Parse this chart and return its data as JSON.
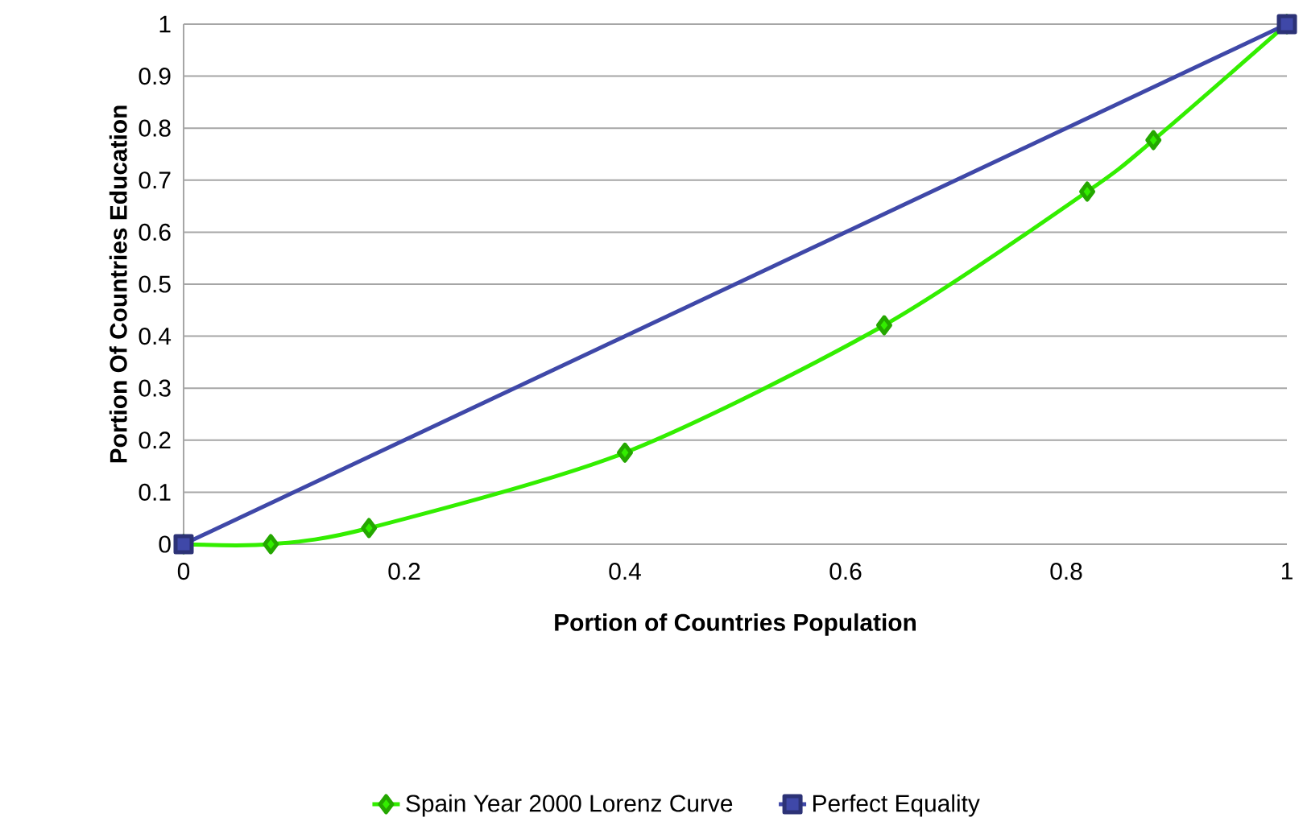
{
  "chart_data": {
    "type": "line",
    "xlabel": "Portion of Countries Population",
    "ylabel": "Portion Of Countries Education",
    "series": [
      {
        "name": "Spain Year 2000 Lorenz Curve",
        "color": "#33ee00",
        "marker": "diamond",
        "x": [
          0,
          0.079,
          0.168,
          0.4,
          0.635,
          0.819,
          0.879,
          1
        ],
        "values": [
          0,
          0,
          0.031,
          0.176,
          0.421,
          0.678,
          0.777,
          1
        ]
      },
      {
        "name": "Perfect Equality",
        "color": "#3f48a8",
        "marker": "square",
        "x": [
          0,
          1
        ],
        "values": [
          0,
          1
        ]
      }
    ],
    "xlim": [
      0,
      1
    ],
    "ylim": [
      0,
      1
    ],
    "xticks": [
      0,
      0.2,
      0.4,
      0.6,
      0.8,
      1
    ],
    "yticks": [
      0,
      0.1,
      0.2,
      0.3,
      0.4,
      0.5,
      0.6,
      0.7,
      0.8,
      0.9,
      1
    ],
    "grid": "y",
    "legend": "bottom"
  }
}
